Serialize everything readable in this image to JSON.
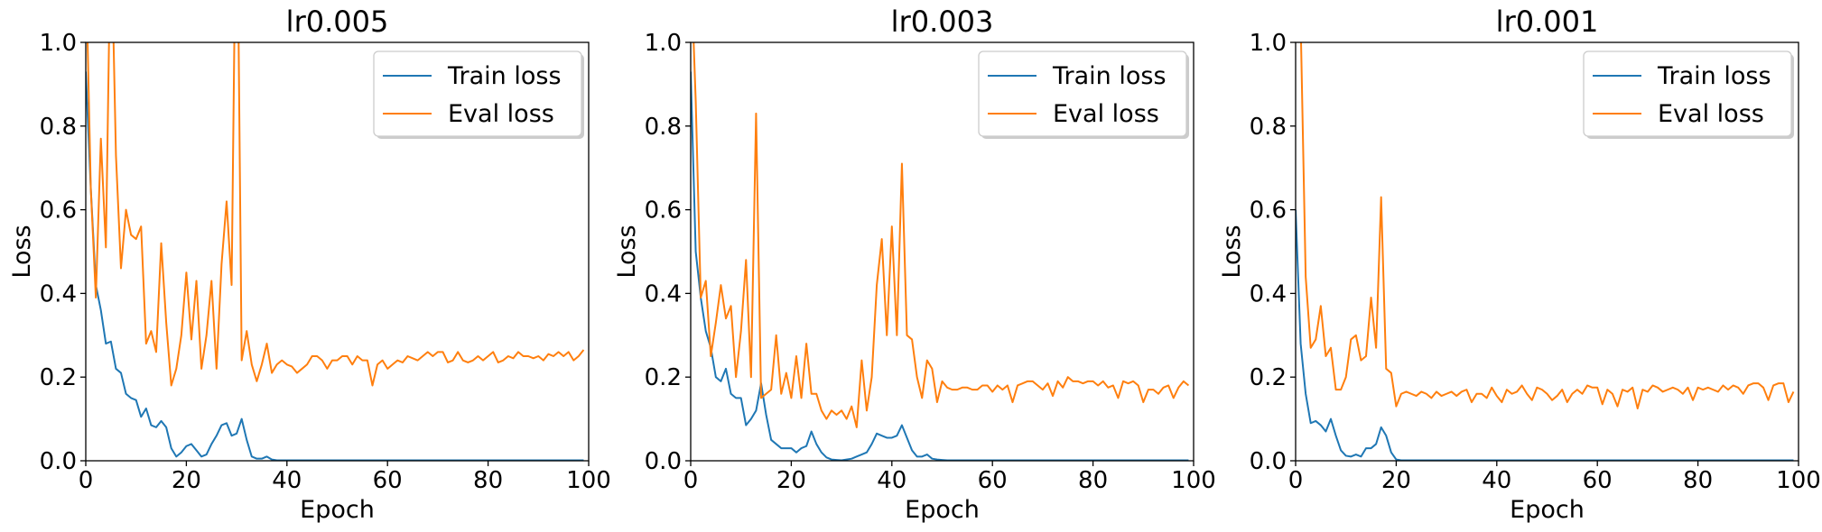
{
  "colors": {
    "train": "#1f77b4",
    "eval": "#ff7f0e"
  },
  "chart_data": [
    {
      "type": "line",
      "title": "lr0.005",
      "xlabel": "Epoch",
      "ylabel": "Loss",
      "xlim": [
        0,
        100
      ],
      "ylim": [
        0,
        1.0
      ],
      "xticks": [
        "0",
        "20",
        "40",
        "60",
        "80",
        "100"
      ],
      "yticks": [
        "0.0",
        "0.2",
        "0.4",
        "0.6",
        "0.8",
        "1.0"
      ],
      "legend": "top-right",
      "series": [
        {
          "name": "Train loss",
          "values": [
            0.93,
            0.65,
            0.42,
            0.36,
            0.28,
            0.285,
            0.22,
            0.21,
            0.16,
            0.15,
            0.145,
            0.105,
            0.125,
            0.085,
            0.08,
            0.095,
            0.08,
            0.03,
            0.01,
            0.02,
            0.035,
            0.04,
            0.025,
            0.01,
            0.015,
            0.04,
            0.06,
            0.085,
            0.09,
            0.06,
            0.065,
            0.1,
            0.05,
            0.01,
            0.005,
            0.005,
            0.01,
            0.003,
            0.001,
            0.001,
            0.001,
            0.001,
            0.001,
            0.001,
            0.001,
            0.001,
            0.001,
            0.001,
            0.001,
            0.001,
            0.001,
            0.001,
            0.001,
            0.001,
            0.001,
            0.001,
            0.001,
            0.001,
            0.001,
            0.001,
            0.001,
            0.001,
            0.001,
            0.001,
            0.001,
            0.001,
            0.001,
            0.001,
            0.001,
            0.001,
            0.001,
            0.001,
            0.001,
            0.001,
            0.001,
            0.001,
            0.001,
            0.001,
            0.001,
            0.001,
            0.001,
            0.001,
            0.001,
            0.001,
            0.001,
            0.001,
            0.001,
            0.001,
            0.001,
            0.001,
            0.001,
            0.001,
            0.001,
            0.001,
            0.001,
            0.001,
            0.001,
            0.001,
            0.001,
            0.001
          ]
        },
        {
          "name": "Eval loss",
          "values": [
            1.2,
            0.65,
            0.39,
            0.77,
            0.51,
            1.3,
            0.73,
            0.46,
            0.6,
            0.54,
            0.53,
            0.56,
            0.28,
            0.31,
            0.26,
            0.52,
            0.33,
            0.18,
            0.22,
            0.3,
            0.45,
            0.29,
            0.43,
            0.22,
            0.3,
            0.43,
            0.22,
            0.47,
            0.62,
            0.42,
            1.5,
            0.24,
            0.31,
            0.23,
            0.19,
            0.23,
            0.28,
            0.21,
            0.23,
            0.24,
            0.23,
            0.225,
            0.21,
            0.22,
            0.23,
            0.25,
            0.25,
            0.24,
            0.22,
            0.24,
            0.24,
            0.25,
            0.25,
            0.23,
            0.25,
            0.24,
            0.24,
            0.18,
            0.23,
            0.24,
            0.22,
            0.23,
            0.24,
            0.235,
            0.25,
            0.245,
            0.24,
            0.25,
            0.26,
            0.25,
            0.26,
            0.26,
            0.235,
            0.24,
            0.26,
            0.24,
            0.235,
            0.24,
            0.25,
            0.24,
            0.25,
            0.26,
            0.235,
            0.24,
            0.25,
            0.245,
            0.26,
            0.25,
            0.25,
            0.245,
            0.25,
            0.24,
            0.255,
            0.25,
            0.26,
            0.25,
            0.26,
            0.24,
            0.25,
            0.265
          ]
        }
      ]
    },
    {
      "type": "line",
      "title": "lr0.003",
      "xlabel": "Epoch",
      "ylabel": "Loss",
      "xlim": [
        0,
        100
      ],
      "ylim": [
        0,
        1.0
      ],
      "xticks": [
        "0",
        "20",
        "40",
        "60",
        "80",
        "100"
      ],
      "yticks": [
        "0.0",
        "0.2",
        "0.4",
        "0.6",
        "0.8",
        "1.0"
      ],
      "legend": "top-right",
      "series": [
        {
          "name": "Train loss",
          "values": [
            0.93,
            0.5,
            0.39,
            0.31,
            0.27,
            0.2,
            0.19,
            0.22,
            0.16,
            0.15,
            0.15,
            0.085,
            0.1,
            0.12,
            0.185,
            0.11,
            0.05,
            0.04,
            0.03,
            0.03,
            0.03,
            0.02,
            0.03,
            0.035,
            0.07,
            0.04,
            0.02,
            0.008,
            0.003,
            0.002,
            0.001,
            0.003,
            0.005,
            0.01,
            0.015,
            0.02,
            0.04,
            0.065,
            0.06,
            0.055,
            0.055,
            0.06,
            0.085,
            0.055,
            0.025,
            0.01,
            0.01,
            0.015,
            0.005,
            0.003,
            0.002,
            0.001,
            0.001,
            0.001,
            0.001,
            0.001,
            0.001,
            0.001,
            0.001,
            0.001,
            0.001,
            0.001,
            0.001,
            0.001,
            0.001,
            0.001,
            0.001,
            0.001,
            0.001,
            0.001,
            0.001,
            0.001,
            0.001,
            0.001,
            0.001,
            0.001,
            0.001,
            0.001,
            0.001,
            0.001,
            0.001,
            0.001,
            0.001,
            0.001,
            0.001,
            0.001,
            0.001,
            0.001,
            0.001,
            0.001,
            0.001,
            0.001,
            0.001,
            0.001,
            0.001,
            0.001,
            0.001,
            0.001,
            0.001,
            0.001
          ]
        },
        {
          "name": "Eval loss",
          "values": [
            1.2,
            0.86,
            0.39,
            0.43,
            0.25,
            0.33,
            0.42,
            0.34,
            0.37,
            0.2,
            0.31,
            0.48,
            0.2,
            0.83,
            0.15,
            0.16,
            0.17,
            0.3,
            0.16,
            0.21,
            0.15,
            0.25,
            0.15,
            0.28,
            0.16,
            0.16,
            0.12,
            0.1,
            0.12,
            0.11,
            0.12,
            0.1,
            0.13,
            0.08,
            0.24,
            0.12,
            0.2,
            0.42,
            0.53,
            0.3,
            0.56,
            0.3,
            0.71,
            0.3,
            0.29,
            0.2,
            0.15,
            0.24,
            0.22,
            0.14,
            0.19,
            0.175,
            0.17,
            0.17,
            0.175,
            0.175,
            0.17,
            0.17,
            0.18,
            0.18,
            0.165,
            0.18,
            0.17,
            0.18,
            0.14,
            0.18,
            0.185,
            0.19,
            0.19,
            0.18,
            0.17,
            0.185,
            0.155,
            0.19,
            0.175,
            0.2,
            0.19,
            0.19,
            0.185,
            0.19,
            0.19,
            0.18,
            0.19,
            0.175,
            0.18,
            0.15,
            0.19,
            0.185,
            0.19,
            0.18,
            0.14,
            0.17,
            0.17,
            0.16,
            0.175,
            0.18,
            0.15,
            0.175,
            0.19,
            0.18
          ]
        }
      ]
    },
    {
      "type": "line",
      "title": "lr0.001",
      "xlabel": "Epoch",
      "ylabel": "Loss",
      "xlim": [
        0,
        100
      ],
      "ylim": [
        0,
        1.0
      ],
      "xticks": [
        "0",
        "20",
        "40",
        "60",
        "80",
        "100"
      ],
      "yticks": [
        "0.0",
        "0.2",
        "0.4",
        "0.6",
        "0.8",
        "1.0"
      ],
      "legend": "top-right",
      "series": [
        {
          "name": "Train loss",
          "values": [
            0.6,
            0.28,
            0.16,
            0.09,
            0.095,
            0.085,
            0.07,
            0.1,
            0.06,
            0.025,
            0.012,
            0.01,
            0.015,
            0.01,
            0.03,
            0.03,
            0.04,
            0.08,
            0.06,
            0.02,
            0.003,
            0.001,
            0.001,
            0.001,
            0.001,
            0.001,
            0.001,
            0.001,
            0.001,
            0.001,
            0.001,
            0.001,
            0.001,
            0.001,
            0.001,
            0.001,
            0.001,
            0.001,
            0.001,
            0.001,
            0.001,
            0.001,
            0.001,
            0.001,
            0.001,
            0.001,
            0.001,
            0.001,
            0.001,
            0.001,
            0.001,
            0.001,
            0.001,
            0.001,
            0.001,
            0.001,
            0.001,
            0.001,
            0.001,
            0.001,
            0.001,
            0.001,
            0.001,
            0.001,
            0.001,
            0.001,
            0.001,
            0.001,
            0.001,
            0.001,
            0.001,
            0.001,
            0.001,
            0.001,
            0.001,
            0.001,
            0.001,
            0.001,
            0.001,
            0.001,
            0.001,
            0.001,
            0.001,
            0.001,
            0.001,
            0.001,
            0.001,
            0.001,
            0.001,
            0.001,
            0.001,
            0.001,
            0.001,
            0.001,
            0.001,
            0.001,
            0.001,
            0.001,
            0.001,
            0.001
          ]
        },
        {
          "name": "Eval loss",
          "values": [
            1.3,
            1.05,
            0.44,
            0.27,
            0.29,
            0.37,
            0.25,
            0.27,
            0.17,
            0.17,
            0.2,
            0.29,
            0.3,
            0.24,
            0.25,
            0.39,
            0.27,
            0.63,
            0.22,
            0.21,
            0.13,
            0.16,
            0.165,
            0.16,
            0.155,
            0.165,
            0.16,
            0.15,
            0.165,
            0.155,
            0.16,
            0.165,
            0.155,
            0.165,
            0.17,
            0.14,
            0.16,
            0.16,
            0.15,
            0.175,
            0.155,
            0.14,
            0.17,
            0.16,
            0.165,
            0.18,
            0.16,
            0.145,
            0.175,
            0.17,
            0.16,
            0.145,
            0.155,
            0.17,
            0.14,
            0.16,
            0.17,
            0.16,
            0.18,
            0.175,
            0.175,
            0.135,
            0.17,
            0.16,
            0.13,
            0.17,
            0.165,
            0.175,
            0.125,
            0.17,
            0.165,
            0.18,
            0.175,
            0.165,
            0.17,
            0.175,
            0.17,
            0.16,
            0.175,
            0.145,
            0.175,
            0.17,
            0.175,
            0.17,
            0.165,
            0.18,
            0.17,
            0.18,
            0.175,
            0.16,
            0.18,
            0.185,
            0.185,
            0.175,
            0.145,
            0.18,
            0.185,
            0.185,
            0.14,
            0.165
          ]
        }
      ]
    }
  ]
}
